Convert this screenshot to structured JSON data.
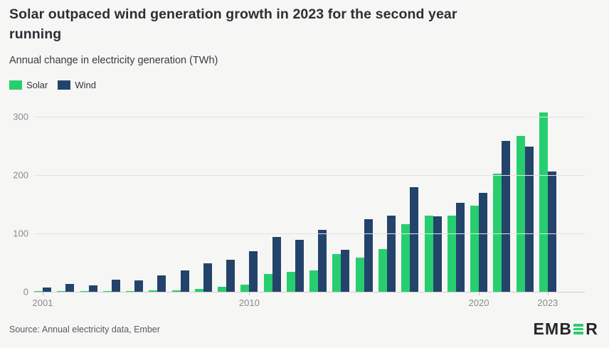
{
  "header": {
    "title_line1": "Solar outpaced wind generation growth in 2023 for the second year",
    "title_line2": "running",
    "subtitle": "Annual change in electricity generation (TWh)"
  },
  "legend": [
    {
      "label": "Solar",
      "color": "#27ce70"
    },
    {
      "label": "Wind",
      "color": "#24436b"
    }
  ],
  "chart_data": {
    "type": "bar",
    "title": "Solar outpaced wind generation growth in 2023 for the second year running",
    "subtitle": "Annual change in electricity generation (TWh)",
    "ylabel": "TWh",
    "ylim": [
      0,
      317
    ],
    "yticks": [
      0,
      100,
      200,
      300
    ],
    "grid": true,
    "legend_position": "top-left",
    "categories": [
      2001,
      2002,
      2003,
      2004,
      2005,
      2006,
      2007,
      2008,
      2009,
      2010,
      2011,
      2012,
      2013,
      2014,
      2015,
      2016,
      2017,
      2018,
      2019,
      2020,
      2021,
      2022,
      2023
    ],
    "xticks_shown": [
      2001,
      2010,
      2020,
      2023
    ],
    "series": [
      {
        "name": "Solar",
        "color": "#27ce70",
        "values": [
          0.4,
          0.4,
          0.5,
          0.8,
          1,
          2,
          3,
          4.5,
          8.5,
          12,
          31,
          34,
          36,
          65,
          59,
          73,
          116,
          130,
          130,
          148,
          202,
          267,
          307
        ]
      },
      {
        "name": "Wind",
        "color": "#24436b",
        "values": [
          7,
          14,
          11,
          21,
          19,
          28,
          37,
          49,
          55,
          70,
          94,
          89,
          106,
          72,
          124,
          130,
          179,
          129,
          152,
          170,
          259,
          249,
          206
        ]
      }
    ]
  },
  "footer": {
    "source": "Source: Annual electricity data, Ember",
    "logo_prefix": "EMB",
    "logo_suffix": "R",
    "logo_accent_color": "#27ce70"
  }
}
